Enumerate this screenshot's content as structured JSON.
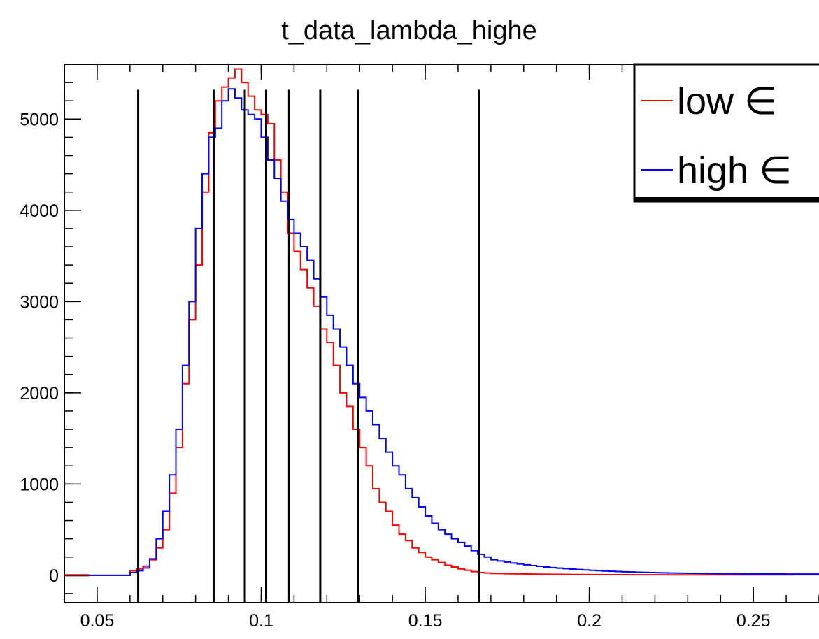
{
  "chart_data": {
    "type": "line",
    "title": "t_data_lambda_highe",
    "xlabel": "",
    "ylabel": "",
    "xlim": [
      0.04,
      0.27
    ],
    "ylim": [
      -300,
      5600
    ],
    "grid": false,
    "legend_position": "top-right",
    "x_ticks": [
      {
        "value": 0.05,
        "label": "0.05"
      },
      {
        "value": 0.1,
        "label": "0.1"
      },
      {
        "value": 0.15,
        "label": "0.15"
      },
      {
        "value": 0.2,
        "label": "0.2"
      },
      {
        "value": 0.25,
        "label": "0.25"
      }
    ],
    "y_ticks": [
      {
        "value": 0,
        "label": "0"
      },
      {
        "value": 1000,
        "label": "1000"
      },
      {
        "value": 2000,
        "label": "2000"
      },
      {
        "value": 3000,
        "label": "3000"
      },
      {
        "value": 4000,
        "label": "4000"
      },
      {
        "value": 5000,
        "label": "5000"
      }
    ],
    "bin_edges": [
      0.06,
      0.062,
      0.064,
      0.066,
      0.068,
      0.07,
      0.072,
      0.074,
      0.076,
      0.078,
      0.08,
      0.082,
      0.084,
      0.086,
      0.088,
      0.09,
      0.092,
      0.094,
      0.096,
      0.098,
      0.1,
      0.102,
      0.104,
      0.106,
      0.108,
      0.11,
      0.112,
      0.114,
      0.116,
      0.118,
      0.12,
      0.122,
      0.124,
      0.126,
      0.128,
      0.13,
      0.132,
      0.134,
      0.136,
      0.138,
      0.14,
      0.142,
      0.144,
      0.146,
      0.148,
      0.15,
      0.152,
      0.154,
      0.156,
      0.158,
      0.16,
      0.162,
      0.164,
      0.166,
      0.168,
      0.17
    ],
    "series": [
      {
        "name": "low ∈",
        "color": "#ff0000",
        "values": [
          50,
          70,
          100,
          170,
          300,
          500,
          900,
          1400,
          2100,
          2800,
          3400,
          4200,
          4850,
          5200,
          5350,
          5450,
          5550,
          5400,
          5250,
          5100,
          5050,
          4950,
          4550,
          4200,
          3750,
          3550,
          3350,
          3150,
          2950,
          2700,
          2550,
          2300,
          2000,
          1850,
          1600,
          1400,
          1200,
          950,
          800,
          700,
          550,
          450,
          380,
          300,
          250,
          200,
          170,
          140,
          110,
          90,
          70,
          55,
          40,
          30,
          25
        ],
        "tail_x": [
          0.17,
          0.27
        ],
        "tail_values": [
          20,
          5
        ]
      },
      {
        "name": "high ∈",
        "color": "#0000ff",
        "values": [
          30,
          50,
          80,
          180,
          400,
          700,
          1100,
          1600,
          2300,
          3000,
          3800,
          4400,
          4800,
          4900,
          5200,
          5330,
          5230,
          5100,
          5050,
          5000,
          4800,
          4550,
          4350,
          4100,
          3900,
          3750,
          3600,
          3450,
          3250,
          3050,
          2850,
          2700,
          2500,
          2300,
          2100,
          1950,
          1800,
          1650,
          1500,
          1350,
          1200,
          1100,
          950,
          850,
          750,
          650,
          570,
          500,
          450,
          400,
          360,
          320,
          270,
          230,
          200
        ],
        "tail_x": [
          0.17,
          0.27
        ],
        "tail_values": [
          170,
          10
        ]
      }
    ],
    "vertical_lines": [
      0.0625,
      0.0855,
      0.095,
      0.1015,
      0.1085,
      0.118,
      0.1295,
      0.1665
    ],
    "vertical_line_top": 5320
  }
}
